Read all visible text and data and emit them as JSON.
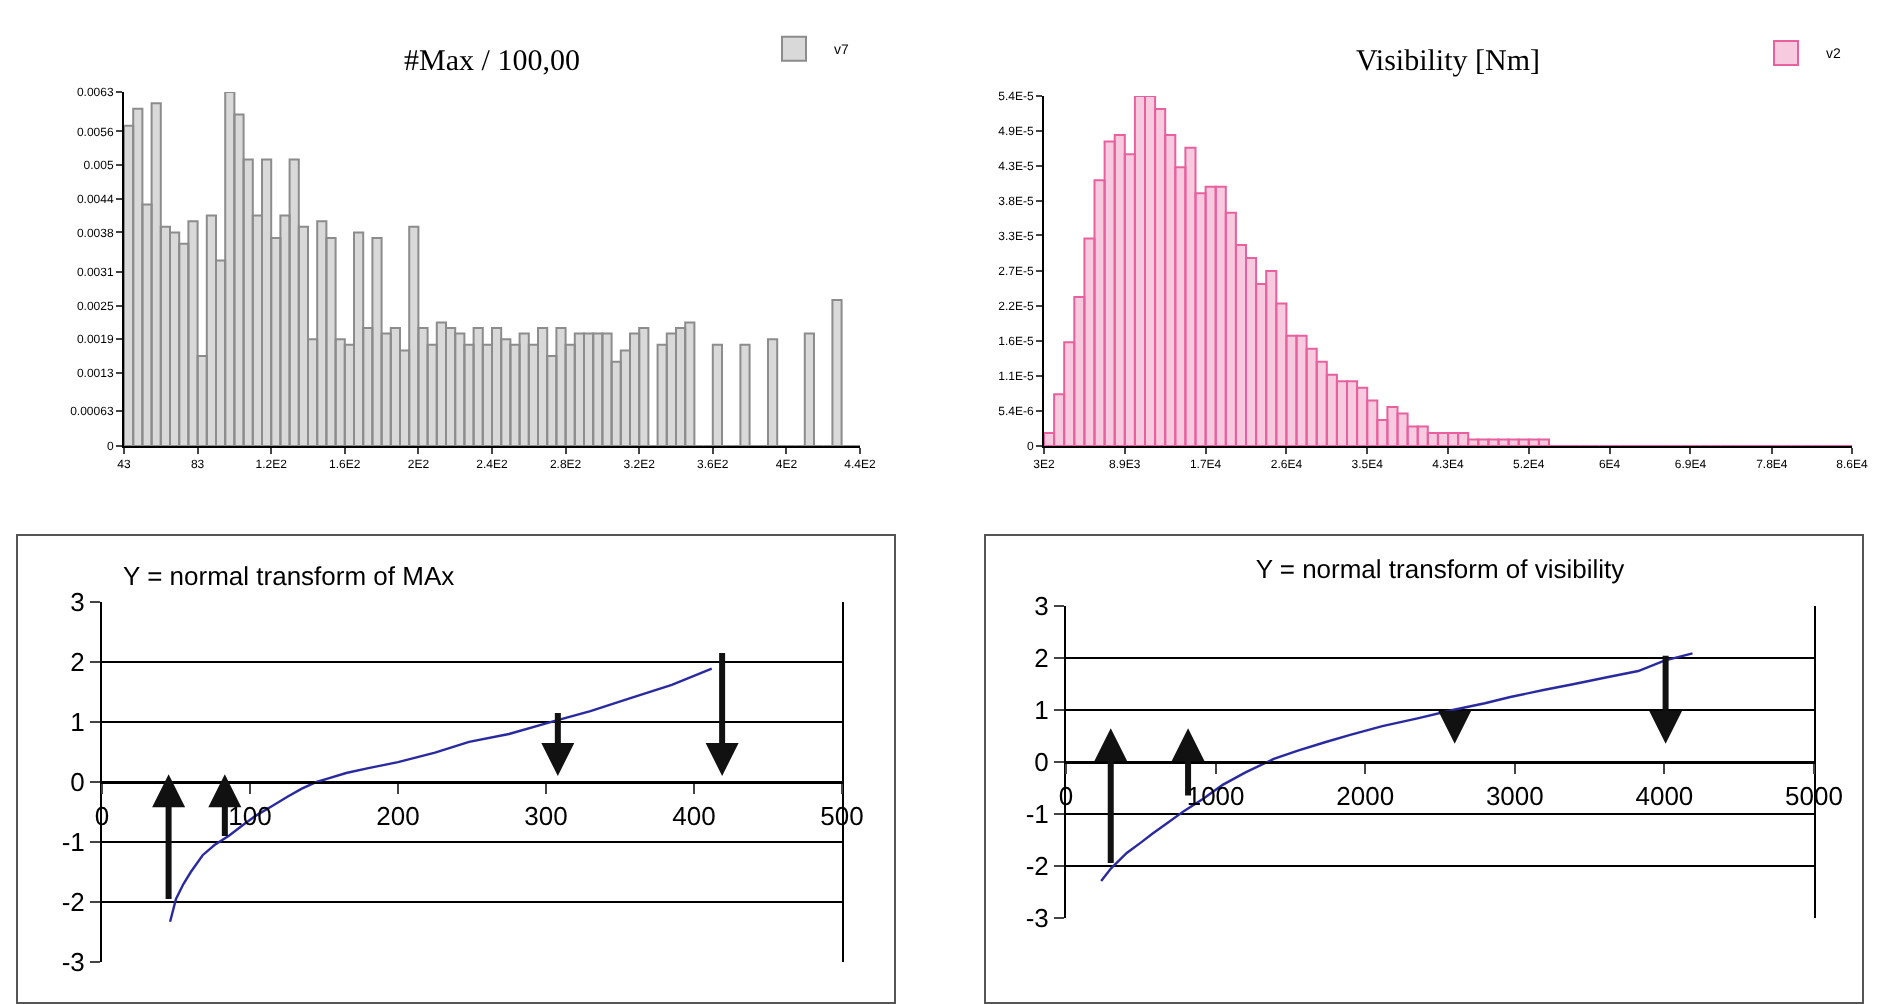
{
  "chart_data": [
    {
      "type": "histogram",
      "title": "#Max / 100,00",
      "legend": "top right",
      "bins": [
        43,
        48,
        53,
        58,
        63,
        68,
        73,
        78,
        83,
        88,
        93,
        98,
        103,
        108,
        113,
        118,
        123,
        128,
        133,
        138,
        143,
        148,
        153,
        158,
        163,
        168,
        173,
        178,
        183,
        188,
        193,
        198,
        203,
        208,
        213,
        218,
        223,
        228,
        233,
        238,
        243,
        248,
        253,
        258,
        263,
        268,
        273,
        278,
        283,
        288,
        293,
        298,
        303,
        308,
        313,
        318,
        323,
        328,
        333,
        338,
        343,
        348,
        353,
        358,
        363,
        368,
        373,
        378,
        383,
        388,
        393,
        398,
        403,
        408,
        413,
        418,
        423,
        428,
        433,
        438,
        443
      ],
      "series": [
        {
          "name": "v7",
          "color": "#8c8c8c",
          "values": [
            0.0057,
            0.006,
            0.0043,
            0.0061,
            0.0039,
            0.0038,
            0.0036,
            0.004,
            0.0016,
            0.0041,
            0.0033,
            0.0063,
            0.0059,
            0.0051,
            0.0041,
            0.0051,
            0.0037,
            0.0041,
            0.0051,
            0.0039,
            0.0019,
            0.004,
            0.0037,
            0.0019,
            0.0018,
            0.0038,
            0.0021,
            0.0037,
            0.002,
            0.0021,
            0.0017,
            0.0039,
            0.0021,
            0.0018,
            0.0022,
            0.0021,
            0.002,
            0.0018,
            0.0021,
            0.0018,
            0.0021,
            0.0019,
            0.0018,
            0.002,
            0.0018,
            0.0021,
            0.0016,
            0.0021,
            0.0018,
            0.002,
            0.002,
            0.002,
            0.002,
            0.0015,
            0.0017,
            0.002,
            0.0021,
            0,
            0.0018,
            0.002,
            0.0021,
            0.0022,
            0,
            0,
            0.0018,
            0,
            0,
            0.0018,
            0,
            0,
            0.0019,
            0,
            0,
            0,
            0.002,
            0,
            0,
            0.0026,
            0,
            0
          ]
        }
      ],
      "xlim": [
        43,
        443
      ],
      "xticks": [
        43,
        83,
        {
          "value": 123,
          "label": "1.2E2"
        },
        {
          "value": 163,
          "label": "1.6E2"
        },
        {
          "value": 203,
          "label": "2E2"
        },
        {
          "value": 243,
          "label": "2.4E2"
        },
        {
          "value": 283,
          "label": "2.8E2"
        },
        {
          "value": 323,
          "label": "3.2E2"
        },
        {
          "value": 363,
          "label": "3.6E2"
        },
        {
          "value": 403,
          "label": "4E2"
        },
        {
          "value": 443,
          "label": "4.4E2"
        }
      ],
      "ylim": [
        0,
        0.0063
      ],
      "yticks": [
        0,
        0.00063,
        0.0013,
        0.0019,
        0.0025,
        0.0031,
        0.0038,
        0.0044,
        0.005,
        0.0056,
        0.0063
      ],
      "grid": false
    },
    {
      "type": "histogram",
      "title": "Visibility [Nm]",
      "legend": "top right",
      "bins": [
        300,
        1371.25,
        2442.5,
        3513.75,
        4585,
        5656.25,
        6727.5,
        7798.75,
        8870,
        9941.25,
        11012.5,
        12083.75,
        13155,
        14226.25,
        15297.5,
        16368.75,
        17440,
        18511.25,
        19582.5,
        20653.75,
        21725,
        22796.25,
        23867.5,
        24938.75,
        26010,
        27081.25,
        28152.5,
        29223.75,
        30295,
        31366.25,
        32437.5,
        33508.75,
        34580,
        35651.25,
        36722.5,
        37793.75,
        38865,
        39936.25,
        41007.5,
        42078.75,
        43150,
        44221.25,
        45292.5,
        46363.75,
        47435,
        48506.25,
        49577.5,
        50648.75,
        51720,
        52791.25,
        53862.5,
        54933.75,
        56005,
        57076.25,
        58147.5,
        59218.75,
        60290,
        61361.25,
        62432.5,
        63503.75,
        64575,
        65646.25,
        66717.5,
        67788.75,
        68860,
        69931.25,
        71002.5,
        72073.75,
        73145,
        74216.25,
        75287.5,
        76358.75,
        77430,
        78501.25,
        79572.5,
        80643.75,
        81715,
        82786.25,
        83857.5,
        84928.75,
        86000
      ],
      "series": [
        {
          "name": "v2",
          "color": "#e8609e",
          "values": [
            2e-06,
            8e-06,
            1.6e-05,
            2.3e-05,
            3.2e-05,
            4.1e-05,
            4.7e-05,
            4.8e-05,
            4.5e-05,
            5.4e-05,
            5.4e-05,
            5.2e-05,
            4.8e-05,
            4.3e-05,
            4.6e-05,
            3.9e-05,
            4e-05,
            4e-05,
            3.6e-05,
            3.1e-05,
            2.9e-05,
            2.5e-05,
            2.7e-05,
            2.2e-05,
            1.7e-05,
            1.7e-05,
            1.5e-05,
            1.3e-05,
            1.1e-05,
            1e-05,
            1e-05,
            9e-06,
            7e-06,
            4e-06,
            6e-06,
            5e-06,
            3e-06,
            3e-06,
            2e-06,
            2e-06,
            2e-06,
            2e-06,
            1e-06,
            1e-06,
            1e-06,
            1e-06,
            1e-06,
            1e-06,
            1e-06,
            1e-06,
            0,
            0,
            0,
            0,
            0,
            0,
            0,
            0,
            0,
            0,
            0,
            0,
            0,
            0,
            0,
            0,
            0,
            0,
            0,
            0,
            0,
            0,
            0,
            0,
            0,
            0,
            0,
            0,
            0,
            0
          ]
        }
      ],
      "xlim": [
        300,
        86000
      ],
      "xticks": [
        {
          "value": 300,
          "label": "3E2"
        },
        {
          "value": 8870,
          "label": "8.9E3"
        },
        {
          "value": 17440,
          "label": "1.7E4"
        },
        {
          "value": 26010,
          "label": "2.6E4"
        },
        {
          "value": 34580,
          "label": "3.5E4"
        },
        {
          "value": 43150,
          "label": "4.3E4"
        },
        {
          "value": 51720,
          "label": "5.2E4"
        },
        {
          "value": 60290,
          "label": "6E4"
        },
        {
          "value": 68860,
          "label": "6.9E4"
        },
        {
          "value": 77500,
          "label": "7.8E4"
        },
        {
          "value": 86000,
          "label": "8.6E4"
        }
      ],
      "ylim": [
        0,
        5.4e-05
      ],
      "yticks": [
        0,
        {
          "value": 5.4e-06,
          "label": "5.4E-6"
        },
        {
          "value": 1.08e-05,
          "label": "1.1E-5"
        },
        {
          "value": 1.62e-05,
          "label": "1.6E-5"
        },
        {
          "value": 2.16e-05,
          "label": "2.2E-5"
        },
        {
          "value": 2.7e-05,
          "label": "2.7E-5"
        },
        {
          "value": 3.25e-05,
          "label": "3.3E-5"
        },
        {
          "value": 3.78e-05,
          "label": "3.8E-5"
        },
        {
          "value": 4.32e-05,
          "label": "4.3E-5"
        },
        {
          "value": 4.86e-05,
          "label": "4.9E-5"
        },
        {
          "value": 5.4e-05,
          "label": "5.4E-5"
        }
      ],
      "grid": false
    },
    {
      "type": "line",
      "title": "Y = normal transform of MAx",
      "marker": "none",
      "line_style": "solid",
      "grid": "y",
      "legend": false,
      "x": [
        46,
        50,
        55,
        60,
        68,
        76,
        86,
        95,
        104,
        115,
        125,
        135,
        145,
        153,
        165,
        180,
        200,
        225,
        248,
        275,
        306,
        330,
        356,
        385,
        412
      ],
      "values": [
        -2.33,
        -1.95,
        -1.7,
        -1.5,
        -1.22,
        -1.05,
        -0.89,
        -0.72,
        -0.56,
        -0.4,
        -0.25,
        -0.11,
        0,
        0.06,
        0.15,
        0.23,
        0.33,
        0.49,
        0.67,
        0.8,
        1.02,
        1.18,
        1.39,
        1.62,
        1.89
      ],
      "color": "#2a2aa0",
      "xlim": [
        0,
        500
      ],
      "xticks": [
        0,
        100,
        200,
        300,
        400,
        500
      ],
      "ylim": [
        -3,
        3
      ],
      "yticks": [
        -3,
        -2,
        -1,
        0,
        1,
        2,
        3
      ]
    },
    {
      "type": "line",
      "title": "Y = normal transform of visibility",
      "marker": "none",
      "line_style": "solid",
      "grid": "y",
      "legend": false,
      "x": [
        235,
        300,
        406,
        500,
        577,
        680,
        790,
        920,
        1047,
        1200,
        1389,
        1550,
        1731,
        1900,
        2115,
        2350,
        2585,
        2800,
        2970,
        3200,
        3397,
        3600,
        3825,
        4000,
        4188
      ],
      "values": [
        -2.29,
        -2.05,
        -1.75,
        -1.55,
        -1.38,
        -1.17,
        -0.94,
        -0.7,
        -0.44,
        -0.2,
        0.06,
        0.22,
        0.38,
        0.52,
        0.69,
        0.84,
        1,
        1.13,
        1.25,
        1.39,
        1.5,
        1.62,
        1.75,
        1.95,
        2.09
      ],
      "color": "#2a2aa0",
      "xlim": [
        0,
        5000
      ],
      "xticks": [
        0,
        1000,
        2000,
        3000,
        4000,
        5000
      ],
      "ylim": [
        -3,
        3
      ],
      "yticks": [
        -3,
        -2,
        -1,
        0,
        1,
        2,
        3
      ]
    }
  ]
}
